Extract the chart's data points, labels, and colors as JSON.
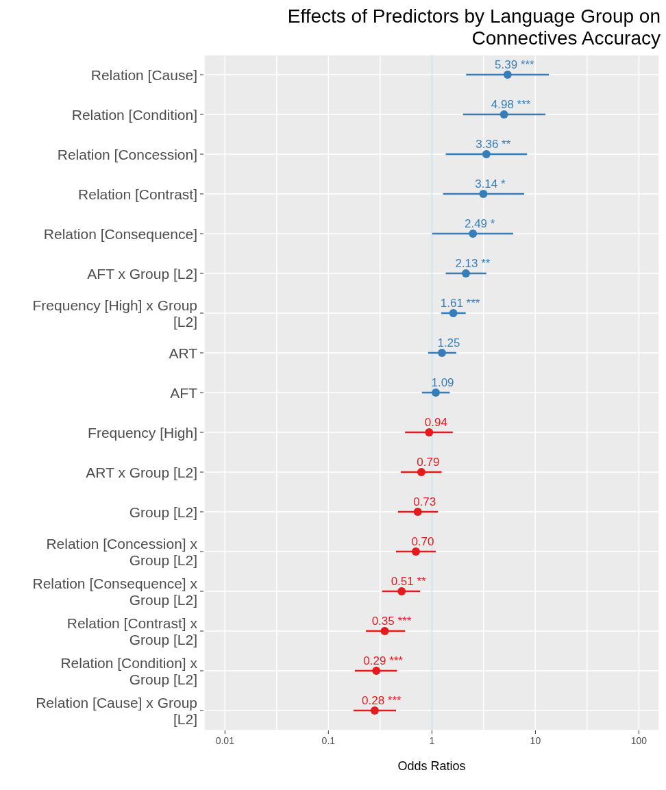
{
  "chart_data": {
    "type": "scatter",
    "orientation": "horizontal",
    "title": "Effects of Predictors by Language Group on Connectives Accuracy",
    "xlabel": "Odds Ratios",
    "log": "x",
    "grid": true,
    "marker": "circle",
    "categories": [
      "Relation [Cause]",
      "Relation [Condition]",
      "Relation [Concession]",
      "Relation [Contrast]",
      "Relation [Consequence]",
      "AFT x Group [L2]",
      "Frequency [High] x Group [L2]",
      "ART",
      "AFT",
      "Frequency [High]",
      "ART x Group [L2]",
      "Group [L2]",
      "Relation [Concession] x Group [L2]",
      "Relation [Consequence] x Group [L2]",
      "Relation [Contrast] x Group [L2]",
      "Relation [Condition] x Group [L2]",
      "Relation [Cause] x Group [L2]"
    ],
    "xlim": [
      0.0063,
      157
    ],
    "xticks": [
      0.01,
      {
        "value": 0.0316,
        "label": null
      },
      0.1,
      {
        "value": 0.316,
        "label": null
      },
      1,
      {
        "value": 3.16,
        "label": null
      },
      10,
      {
        "value": 31.6,
        "label": null
      },
      100
    ],
    "series": [
      {
        "color": "#377eb8",
        "values": [
          5.39,
          4.98,
          3.36,
          3.14,
          2.49,
          2.13,
          1.61,
          1.25,
          1.09,
          null,
          null,
          null,
          null,
          null,
          null,
          null,
          null
        ],
        "errors": [
          [
            2.14,
            13.5
          ],
          [
            2.0,
            12.5
          ],
          [
            1.36,
            8.3
          ],
          [
            1.28,
            7.8
          ],
          [
            1.01,
            6.1
          ],
          [
            1.36,
            3.36
          ],
          [
            1.23,
            2.12
          ],
          [
            0.92,
            1.72
          ],
          [
            0.8,
            1.49
          ],
          null,
          null,
          null,
          null,
          null,
          null,
          null,
          null
        ],
        "value_labels": [
          "5.39 ***",
          "4.98 ***",
          "3.36 **",
          "3.14 *",
          "2.49 *",
          "2.13 **",
          "1.61 ***",
          "1.25",
          "1.09",
          null,
          null,
          null,
          null,
          null,
          null,
          null,
          null
        ]
      },
      {
        "color": "#e41a1c",
        "values": [
          null,
          null,
          null,
          null,
          null,
          null,
          null,
          null,
          null,
          0.94,
          0.79,
          0.73,
          0.7,
          0.51,
          0.35,
          0.29,
          0.28
        ],
        "errors": [
          null,
          null,
          null,
          null,
          null,
          null,
          null,
          null,
          null,
          [
            0.55,
            1.59
          ],
          [
            0.5,
            1.24
          ],
          [
            0.47,
            1.14
          ],
          [
            0.45,
            1.09
          ],
          [
            0.33,
            0.77
          ],
          [
            0.23,
            0.55
          ],
          [
            0.18,
            0.46
          ],
          [
            0.175,
            0.45
          ]
        ],
        "value_labels": [
          null,
          null,
          null,
          null,
          null,
          null,
          null,
          null,
          null,
          "0.94",
          "0.79",
          "0.73",
          "0.70",
          "0.51 **",
          "0.35 ***",
          "0.29 ***",
          "0.28 ***"
        ]
      }
    ],
    "ref_lines": [
      {
        "axis": "x",
        "value": 1,
        "color": "#a6cee3"
      }
    ]
  }
}
